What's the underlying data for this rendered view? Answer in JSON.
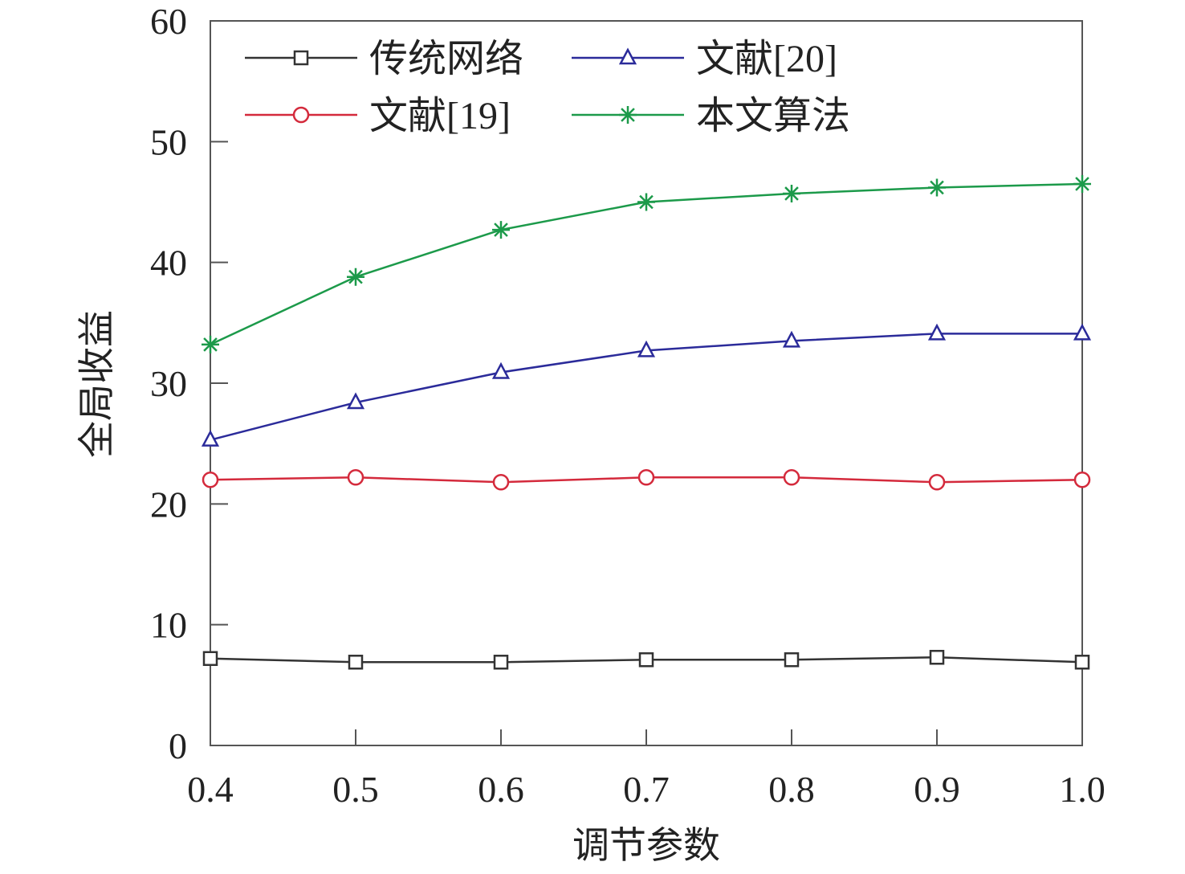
{
  "chart_data": {
    "type": "line",
    "title": "",
    "xlabel": "调节参数",
    "ylabel": "全局收益",
    "x": [
      0.4,
      0.5,
      0.6,
      0.7,
      0.8,
      0.9,
      1.0
    ],
    "x_tick_labels": [
      "0.4",
      "0.5",
      "0.6",
      "0.7",
      "0.8",
      "0.9",
      "1.0"
    ],
    "xlim": [
      0.4,
      1.0
    ],
    "ylim": [
      0,
      60
    ],
    "y_ticks": [
      0,
      10,
      20,
      30,
      40,
      50,
      60
    ],
    "y_tick_labels": [
      "0",
      "10",
      "20",
      "30",
      "40",
      "50",
      "60"
    ],
    "grid": false,
    "legend_position": "top-left",
    "series": [
      {
        "name": "传统网络",
        "color": "#333333",
        "marker": "square",
        "values": [
          7.2,
          6.9,
          6.9,
          7.1,
          7.1,
          7.3,
          6.9
        ]
      },
      {
        "name": "文献[20]",
        "color": "#2b2b9a",
        "marker": "triangle",
        "values": [
          25.3,
          28.4,
          30.9,
          32.7,
          33.5,
          34.1,
          34.1
        ]
      },
      {
        "name": "文献[19]",
        "color": "#d42a3c",
        "marker": "circle",
        "values": [
          22.0,
          22.2,
          21.8,
          22.2,
          22.2,
          21.8,
          22.0
        ]
      },
      {
        "name": "本文算法",
        "color": "#1c9a4a",
        "marker": "asterisk",
        "values": [
          33.2,
          38.8,
          42.7,
          45.0,
          45.7,
          46.2,
          46.5
        ]
      }
    ]
  }
}
